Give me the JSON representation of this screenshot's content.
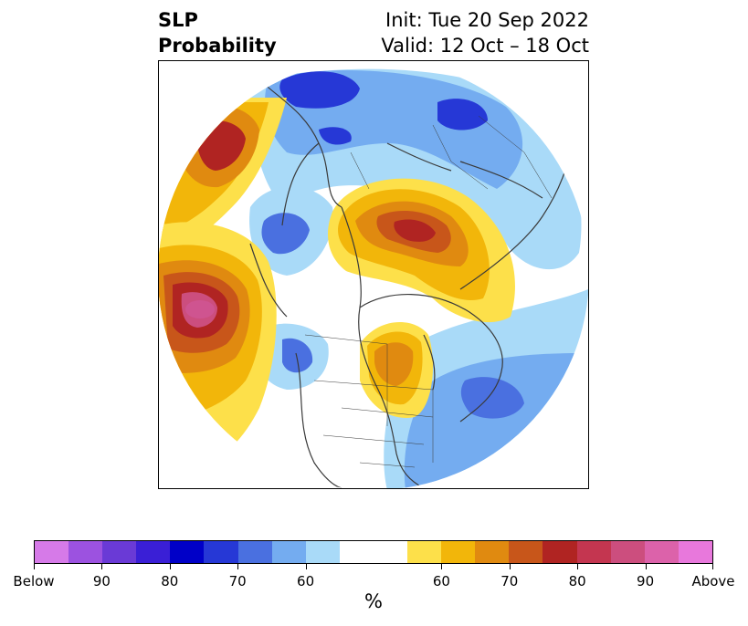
{
  "title": {
    "left_line1": "SLP",
    "left_line2": "Probability",
    "right_line1": "Init: Tue 20 Sep 2022",
    "right_line2": "Valid: 12 Oct – 18 Oct"
  },
  "colorbar": {
    "units": "%",
    "colors": [
      "#d67ae8",
      "#9c52e0",
      "#6a3ad6",
      "#3a1fd6",
      "#0000c8",
      "#2638d6",
      "#4a70e0",
      "#74acf0",
      "#a9daf8",
      "#ffffff",
      "#ffffff",
      "#fde04a",
      "#f2b60a",
      "#e08a10",
      "#c8561a",
      "#b02422",
      "#c43650",
      "#cc4e7e",
      "#dc62aa",
      "#e878dc"
    ],
    "tick_labels": [
      "Below",
      "90",
      "80",
      "70",
      "60",
      "60",
      "70",
      "80",
      "90",
      "Above"
    ]
  },
  "map": {
    "projection": "north polar stereographic",
    "colors": {
      "red": "#b02422",
      "dark_orange": "#c8561a",
      "orange": "#e08a10",
      "gold": "#f2b60a",
      "yellow": "#fde04a",
      "pink": "#cc4e7e",
      "light_blue": "#a9daf8",
      "mid_blue": "#74acf0",
      "blue": "#4a70e0",
      "deep_blue": "#2638d6",
      "coast": "#3a3a3a"
    }
  }
}
